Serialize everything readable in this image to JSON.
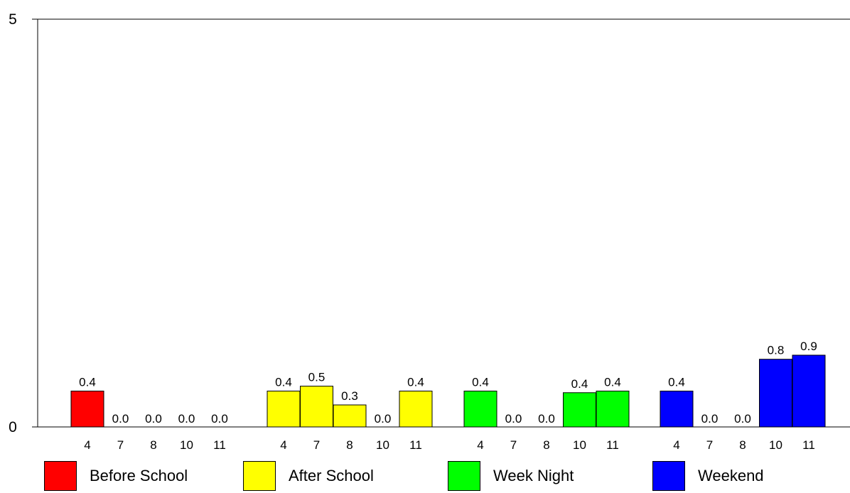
{
  "chart_data": {
    "type": "bar",
    "ylim": [
      0,
      5
    ],
    "yticks": [
      0,
      5
    ],
    "grid": false,
    "legend_position": "bottom",
    "groups": [
      {
        "name": "Before School",
        "color": "#ff0000",
        "categories": [
          "4",
          "7",
          "8",
          "10",
          "11"
        ],
        "values": [
          0.44,
          0.0,
          0.0,
          0.0,
          0.0
        ],
        "labels": [
          "0.4",
          "0.0",
          "0.0",
          "0.0",
          "0.0"
        ]
      },
      {
        "name": "After School",
        "color": "#ffff00",
        "categories": [
          "4",
          "7",
          "8",
          "10",
          "11"
        ],
        "values": [
          0.44,
          0.5,
          0.27,
          0.0,
          0.44
        ],
        "labels": [
          "0.4",
          "0.5",
          "0.3",
          "0.0",
          "0.4"
        ]
      },
      {
        "name": "Week Night",
        "color": "#00ff00",
        "categories": [
          "4",
          "7",
          "8",
          "10",
          "11"
        ],
        "values": [
          0.44,
          0.0,
          0.0,
          0.42,
          0.44
        ],
        "labels": [
          "0.4",
          "0.0",
          "0.0",
          "0.4",
          "0.4"
        ]
      },
      {
        "name": "Weekend",
        "color": "#0000ff",
        "categories": [
          "4",
          "7",
          "8",
          "10",
          "11"
        ],
        "values": [
          0.44,
          0.0,
          0.0,
          0.83,
          0.88
        ],
        "labels": [
          "0.4",
          "0.0",
          "0.0",
          "0.8",
          "0.9"
        ]
      }
    ]
  }
}
